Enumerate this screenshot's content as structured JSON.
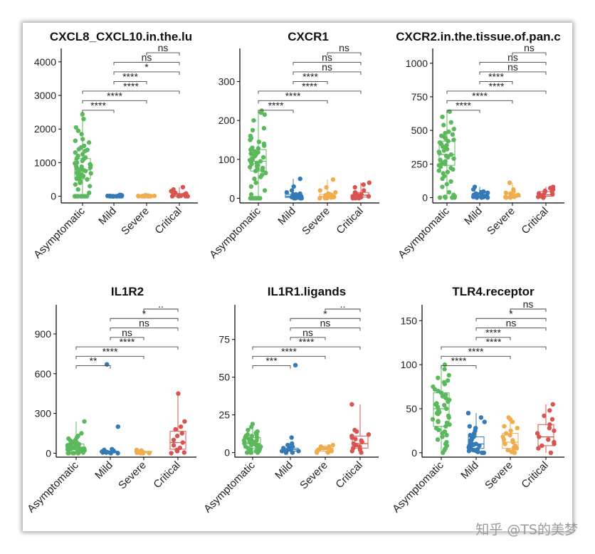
{
  "watermark": "知乎 @TS的美梦",
  "colors": {
    "Asymptomatic": "#5cb85c",
    "Mild": "#337ab7",
    "Severe": "#f0ad4e",
    "Critical": "#d9534f"
  },
  "chart_data": [
    {
      "type": "box-jitter",
      "title": "CXCL8_CXCL10.in.the.lu",
      "categories": [
        "Asymptomatic",
        "Mild",
        "Severe",
        "Critical"
      ],
      "yticks": [
        0,
        1000,
        2000,
        3000,
        4000
      ],
      "ylim": [
        -200,
        4400
      ],
      "box_stats": [
        [
          0,
          520,
          780,
          1120,
          2440
        ],
        [
          0,
          0,
          0,
          10,
          30
        ],
        [
          0,
          0,
          0,
          10,
          30
        ],
        [
          0,
          0,
          10,
          80,
          270
        ]
      ],
      "points": [
        [
          2440,
          2300,
          2050,
          1950,
          1850,
          1700,
          1650,
          1600,
          1500,
          1450,
          1400,
          1380,
          1350,
          1300,
          1250,
          1200,
          1150,
          1120,
          1100,
          1050,
          1000,
          980,
          950,
          920,
          900,
          880,
          850,
          820,
          800,
          780,
          750,
          720,
          700,
          680,
          650,
          620,
          600,
          550,
          520,
          500,
          450,
          400,
          350,
          300,
          200,
          100,
          0,
          0,
          0,
          0,
          0,
          0,
          0,
          0,
          0,
          0,
          0,
          0
        ],
        [
          0,
          0,
          0,
          0,
          0,
          0,
          0,
          0,
          0,
          0,
          0,
          5,
          5,
          10,
          10,
          15,
          20,
          25,
          30,
          40
        ],
        [
          0,
          0,
          0,
          0,
          0,
          0,
          0,
          0,
          0,
          5,
          5,
          10,
          10,
          15,
          20,
          30
        ],
        [
          0,
          0,
          0,
          0,
          10,
          20,
          30,
          50,
          80,
          100,
          150,
          200,
          270
        ]
      ],
      "comparisons": [
        [
          "Asymptomatic",
          "Mild",
          "****"
        ],
        [
          "Asymptomatic",
          "Severe",
          "****"
        ],
        [
          "Asymptomatic",
          "Critical",
          "****"
        ],
        [
          "Mild",
          "Severe",
          "****"
        ],
        [
          "Mild",
          "Critical",
          "*"
        ],
        [
          "Mild",
          "Critical",
          "ns"
        ],
        [
          "Severe",
          "Critical",
          "ns"
        ]
      ]
    },
    {
      "type": "box-jitter",
      "title": "CXCR1",
      "categories": [
        "Asymptomatic",
        "Mild",
        "Severe",
        "Critical"
      ],
      "yticks": [
        0,
        100,
        200,
        300
      ],
      "ylim": [
        -12,
        385
      ],
      "box_stats": [
        [
          0,
          70,
          95,
          125,
          225
        ],
        [
          0,
          2,
          5,
          10,
          50
        ],
        [
          0,
          2,
          5,
          10,
          48
        ],
        [
          0,
          3,
          8,
          15,
          40
        ]
      ],
      "points": [
        [
          225,
          220,
          215,
          200,
          180,
          175,
          160,
          155,
          150,
          145,
          140,
          135,
          130,
          128,
          125,
          120,
          118,
          115,
          112,
          110,
          108,
          105,
          102,
          100,
          98,
          95,
          92,
          90,
          88,
          85,
          82,
          80,
          78,
          75,
          72,
          70,
          65,
          60,
          55,
          50,
          40,
          30,
          20,
          10,
          0,
          0,
          0,
          0,
          0,
          0,
          0,
          0
        ],
        [
          50,
          30,
          20,
          15,
          12,
          10,
          10,
          8,
          8,
          5,
          5,
          5,
          3,
          3,
          2,
          2,
          0,
          0,
          0,
          0
        ],
        [
          48,
          28,
          20,
          15,
          12,
          10,
          8,
          8,
          5,
          5,
          3,
          3,
          2,
          0,
          0,
          0
        ],
        [
          40,
          35,
          28,
          20,
          15,
          12,
          10,
          8,
          5,
          5,
          3,
          0,
          0,
          0
        ]
      ],
      "comparisons": [
        [
          "Asymptomatic",
          "Mild",
          "****"
        ],
        [
          "Asymptomatic",
          "Severe",
          "****"
        ],
        [
          "Asymptomatic",
          "Critical",
          "****"
        ],
        [
          "Mild",
          "Severe",
          "****"
        ],
        [
          "Mild",
          "Critical",
          "ns"
        ],
        [
          "Mild",
          "Critical",
          "ns"
        ],
        [
          "Severe",
          "Critical",
          "ns"
        ]
      ]
    },
    {
      "type": "box-jitter",
      "title": "CXCR2.in.the.tissue.of.pan.c",
      "categories": [
        "Asymptomatic",
        "Mild",
        "Severe",
        "Critical"
      ],
      "yticks": [
        0,
        250,
        500,
        750,
        1000
      ],
      "ylim": [
        -40,
        1110
      ],
      "box_stats": [
        [
          0,
          240,
          320,
          420,
          640
        ],
        [
          0,
          5,
          10,
          25,
          80
        ],
        [
          0,
          5,
          10,
          25,
          110
        ],
        [
          0,
          10,
          20,
          45,
          80
        ]
      ],
      "points": [
        [
          640,
          600,
          560,
          540,
          510,
          490,
          480,
          470,
          460,
          450,
          440,
          430,
          420,
          410,
          400,
          390,
          380,
          370,
          360,
          350,
          340,
          330,
          320,
          310,
          300,
          290,
          280,
          270,
          260,
          250,
          240,
          230,
          220,
          210,
          200,
          190,
          180,
          160,
          140,
          120,
          100,
          80,
          40,
          20,
          10,
          5,
          0,
          0,
          0,
          0
        ],
        [
          80,
          60,
          45,
          40,
          35,
          30,
          25,
          20,
          20,
          15,
          15,
          10,
          10,
          8,
          5,
          5,
          3,
          0,
          0,
          0
        ],
        [
          110,
          60,
          45,
          35,
          30,
          20,
          15,
          10,
          10,
          5,
          5,
          3,
          0,
          0
        ],
        [
          80,
          70,
          60,
          50,
          45,
          40,
          30,
          25,
          20,
          15,
          10,
          5,
          0,
          0
        ]
      ],
      "comparisons": [
        [
          "Asymptomatic",
          "Mild",
          "****"
        ],
        [
          "Asymptomatic",
          "Severe",
          "****"
        ],
        [
          "Asymptomatic",
          "Critical",
          "****"
        ],
        [
          "Mild",
          "Severe",
          "****"
        ],
        [
          "Mild",
          "Critical",
          "ns"
        ],
        [
          "Mild",
          "Critical",
          "ns"
        ],
        [
          "Severe",
          "Critical",
          "ns"
        ]
      ]
    },
    {
      "type": "box-jitter",
      "title": "IL1R2",
      "categories": [
        "Asymptomatic",
        "Mild",
        "Severe",
        "Critical"
      ],
      "yticks": [
        0,
        300,
        600,
        900
      ],
      "ylim": [
        -30,
        1120
      ],
      "box_stats": [
        [
          0,
          25,
          45,
          70,
          240
        ],
        [
          0,
          5,
          10,
          15,
          30
        ],
        [
          0,
          3,
          8,
          15,
          25
        ],
        [
          0,
          30,
          80,
          165,
          450
        ]
      ],
      "points": [
        [
          240,
          150,
          130,
          120,
          110,
          100,
          95,
          90,
          85,
          80,
          78,
          75,
          72,
          70,
          68,
          65,
          62,
          60,
          58,
          55,
          52,
          50,
          48,
          45,
          42,
          40,
          38,
          35,
          32,
          30,
          28,
          25,
          22,
          20,
          15,
          10,
          5,
          0,
          0,
          0,
          0,
          0,
          0
        ],
        [
          670,
          200,
          30,
          25,
          20,
          15,
          12,
          10,
          10,
          8,
          5,
          5,
          3,
          0,
          0,
          0
        ],
        [
          25,
          20,
          15,
          12,
          10,
          8,
          5,
          5,
          3,
          2,
          0,
          0,
          0
        ],
        [
          450,
          240,
          200,
          180,
          150,
          130,
          100,
          80,
          60,
          40,
          25,
          15,
          5,
          0
        ]
      ],
      "comparisons": [
        [
          "Asymptomatic",
          "Mild",
          "**"
        ],
        [
          "Asymptomatic",
          "Severe",
          "****"
        ],
        [
          "Asymptomatic",
          "Critical",
          "****"
        ],
        [
          "Mild",
          "Severe",
          "ns"
        ],
        [
          "Mild",
          "Critical",
          "ns"
        ],
        [
          "Mild",
          "Critical",
          "*"
        ],
        [
          "Severe",
          "Critical",
          ".."
        ]
      ]
    },
    {
      "type": "box-jitter",
      "title": "IL1R1.ligands",
      "categories": [
        "Asymptomatic",
        "Mild",
        "Severe",
        "Critical"
      ],
      "yticks": [
        0,
        25,
        50,
        75
      ],
      "ylim": [
        -3,
        98
      ],
      "box_stats": [
        [
          0,
          3,
          6,
          10,
          19
        ],
        [
          0,
          1,
          2,
          3,
          6
        ],
        [
          0,
          1,
          2,
          3,
          5
        ],
        [
          0,
          3,
          6,
          11,
          32
        ]
      ],
      "points": [
        [
          19,
          17,
          15,
          14,
          13,
          12,
          12,
          11,
          11,
          10,
          10,
          9,
          9,
          8,
          8,
          8,
          7,
          7,
          7,
          6,
          6,
          6,
          5,
          5,
          5,
          4,
          4,
          4,
          3,
          3,
          3,
          2,
          2,
          2,
          1,
          1,
          0,
          0,
          0,
          0
        ],
        [
          58,
          10,
          6,
          5,
          4,
          3,
          3,
          2,
          2,
          2,
          1,
          1,
          1,
          0,
          0,
          0
        ],
        [
          5,
          4,
          4,
          3,
          3,
          2,
          2,
          2,
          1,
          1,
          1,
          0,
          0
        ],
        [
          32,
          15,
          14,
          12,
          11,
          10,
          9,
          8,
          7,
          6,
          5,
          4,
          3,
          2,
          1,
          0
        ]
      ],
      "comparisons": [
        [
          "Asymptomatic",
          "Mild",
          "***"
        ],
        [
          "Asymptomatic",
          "Severe",
          "****"
        ],
        [
          "Asymptomatic",
          "Critical",
          "****"
        ],
        [
          "Mild",
          "Severe",
          "ns"
        ],
        [
          "Mild",
          "Critical",
          "ns"
        ],
        [
          "Mild",
          "Critical",
          "*"
        ],
        [
          "Severe",
          "Critical",
          ".."
        ]
      ]
    },
    {
      "type": "box-jitter",
      "title": "TLR4.receptor",
      "categories": [
        "Asymptomatic",
        "Mild",
        "Severe",
        "Critical"
      ],
      "yticks": [
        0,
        50,
        100,
        150
      ],
      "ylim": [
        -5,
        168
      ],
      "box_stats": [
        [
          0,
          30,
          50,
          68,
          100
        ],
        [
          0,
          5,
          10,
          18,
          45
        ],
        [
          0,
          5,
          12,
          22,
          40
        ],
        [
          0,
          8,
          18,
          32,
          55
        ]
      ],
      "points": [
        [
          100,
          95,
          88,
          85,
          82,
          80,
          78,
          75,
          72,
          70,
          68,
          66,
          64,
          62,
          60,
          58,
          56,
          55,
          54,
          52,
          50,
          48,
          46,
          45,
          44,
          42,
          40,
          38,
          36,
          35,
          34,
          32,
          30,
          28,
          26,
          24,
          22,
          20,
          18,
          15,
          12,
          10,
          8,
          5,
          3,
          0
        ],
        [
          45,
          40,
          35,
          30,
          28,
          25,
          22,
          20,
          18,
          16,
          15,
          14,
          12,
          12,
          10,
          10,
          9,
          8,
          8,
          7,
          6,
          5,
          5,
          4,
          3,
          2,
          2,
          1,
          0,
          0
        ],
        [
          40,
          38,
          35,
          30,
          28,
          25,
          22,
          20,
          18,
          15,
          14,
          12,
          10,
          8,
          6,
          5,
          3,
          2,
          1,
          0
        ],
        [
          55,
          48,
          42,
          38,
          32,
          28,
          25,
          22,
          18,
          15,
          12,
          10,
          8,
          5,
          0
        ]
      ],
      "comparisons": [
        [
          "Asymptomatic",
          "Mild",
          "****"
        ],
        [
          "Asymptomatic",
          "Severe",
          "****"
        ],
        [
          "Asymptomatic",
          "Critical",
          "****"
        ],
        [
          "Mild",
          "Severe",
          "****"
        ],
        [
          "Mild",
          "Critical",
          "ns"
        ],
        [
          "Mild",
          "Critical",
          "*"
        ],
        [
          "Severe",
          "Critical",
          "ns"
        ]
      ]
    }
  ]
}
